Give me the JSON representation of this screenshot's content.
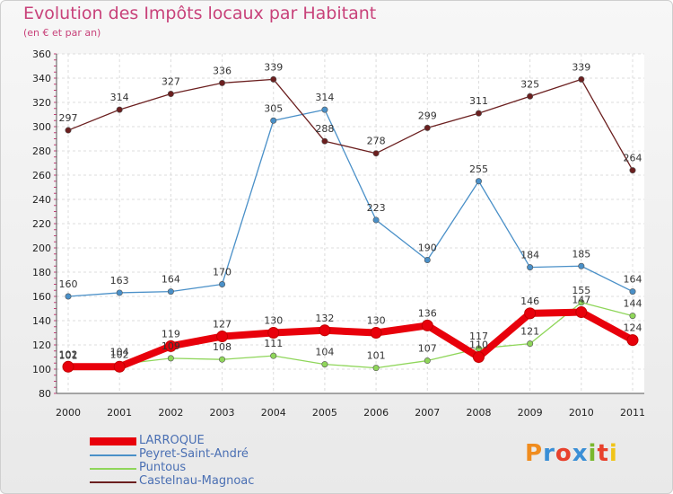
{
  "header": {
    "title": "Evolution des Impôts locaux par Habitant",
    "subtitle": "(en € et par an)"
  },
  "logo": {
    "text": "Proxiti",
    "colors": [
      "#f08c1e",
      "#3a8fd6",
      "#e8412c",
      "#3a8fd6",
      "#7ab82e",
      "#e8412c",
      "#f0c419"
    ]
  },
  "chart_data": {
    "type": "line",
    "title": "Evolution des Impôts locaux par Habitant",
    "subtitle": "(en € et par an)",
    "x": [
      "2000",
      "2001",
      "2002",
      "2003",
      "2004",
      "2005",
      "2006",
      "2007",
      "2008",
      "2009",
      "2010",
      "2011"
    ],
    "ylim": [
      80,
      360
    ],
    "yticks": [
      80,
      100,
      120,
      140,
      160,
      180,
      200,
      220,
      240,
      260,
      280,
      300,
      320,
      340,
      360
    ],
    "grid": true,
    "legend_position": "bottom-left",
    "series": [
      {
        "name": "LARROQUE",
        "color": "#e8000b",
        "values": [
          102,
          102,
          119,
          127,
          130,
          132,
          130,
          136,
          110,
          146,
          147,
          124
        ],
        "labels": [
          "102",
          "102",
          "119",
          "127",
          "130",
          "132",
          "130",
          "136",
          "110",
          "146",
          "147",
          "124"
        ]
      },
      {
        "name": "Peyret-Saint-André",
        "color": "#4a90c8",
        "values": [
          160,
          163,
          164,
          170,
          305,
          314,
          223,
          190,
          255,
          184,
          185,
          164
        ],
        "labels": [
          "160",
          "163",
          "164",
          "170",
          "305",
          "314",
          "223",
          "190",
          "255",
          "184",
          "185",
          "164"
        ]
      },
      {
        "name": "Puntous",
        "color": "#8fd65a",
        "values": [
          101,
          104,
          109,
          108,
          111,
          104,
          101,
          107,
          117,
          121,
          155,
          144
        ],
        "labels": [
          "101",
          "104",
          "109",
          "108",
          "111",
          "104",
          "101",
          "107",
          "117",
          "121",
          "155",
          "144"
        ]
      },
      {
        "name": "Castelnau-Magnoac",
        "color": "#6b1f1f",
        "values": [
          297,
          314,
          327,
          336,
          339,
          288,
          278,
          299,
          311,
          325,
          339,
          264
        ],
        "labels": [
          "297",
          "314",
          "327",
          "336",
          "339",
          "288",
          "278",
          "299",
          "311",
          "325",
          "339",
          "264"
        ]
      }
    ]
  }
}
